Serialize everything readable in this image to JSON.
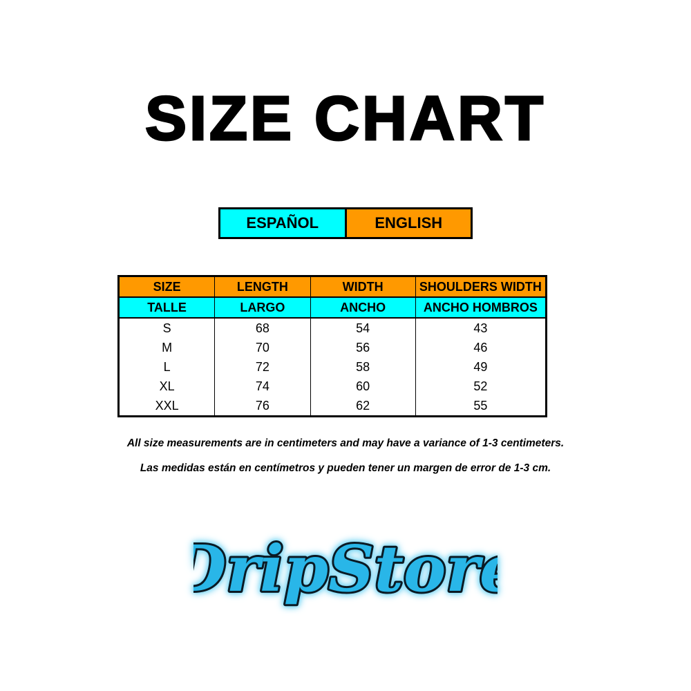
{
  "title": "SIZE CHART",
  "languages": {
    "spanish": "ESPAÑOL",
    "english": "ENGLISH"
  },
  "colors": {
    "orange": "#ff9900",
    "cyan": "#00ffff",
    "logo_blue": "#29b6e8"
  },
  "table": {
    "headers_en": [
      "SIZE",
      "LENGTH",
      "WIDTH",
      "SHOULDERS WIDTH"
    ],
    "headers_es": [
      "TALLE",
      "LARGO",
      "ANCHO",
      "ANCHO HOMBROS"
    ],
    "rows": [
      [
        "S",
        "68",
        "54",
        "43"
      ],
      [
        "M",
        "70",
        "56",
        "46"
      ],
      [
        "L",
        "72",
        "58",
        "49"
      ],
      [
        "XL",
        "74",
        "60",
        "52"
      ],
      [
        "XXL",
        "76",
        "62",
        "55"
      ]
    ]
  },
  "notes": {
    "english": "All size measurements are in centimeters and may have a variance of 1-3 centimeters.",
    "spanish": "Las medidas están en centímetros y pueden tener un margen de error de 1-3 cm."
  },
  "logo": {
    "text": "DripStore"
  }
}
